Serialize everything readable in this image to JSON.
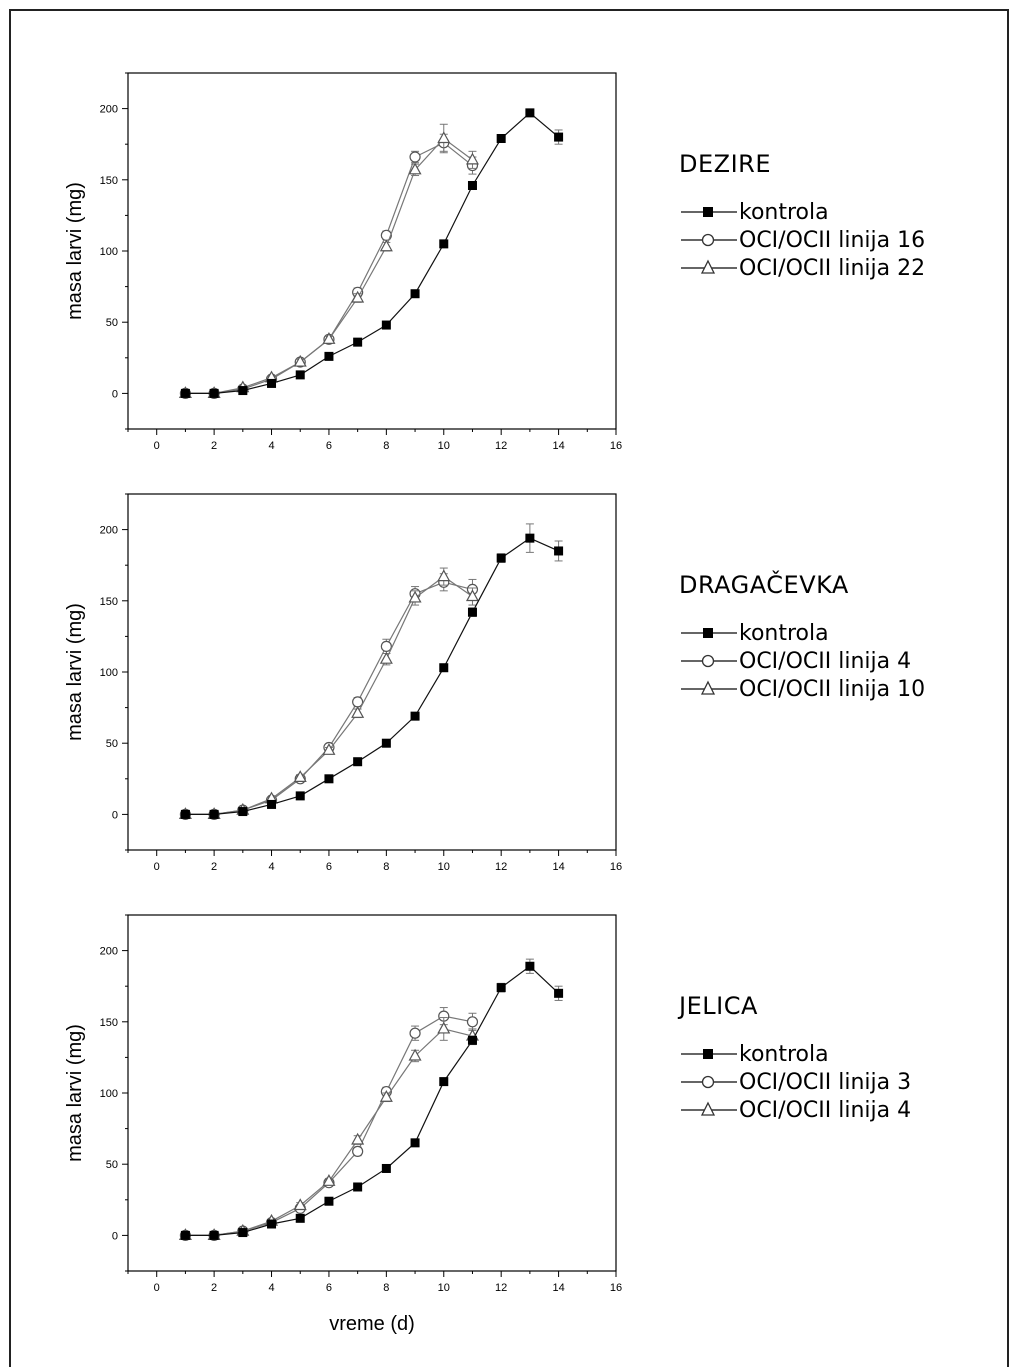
{
  "figure": {
    "xlabel": "vreme (d)",
    "ylabel": "masa larvi (mg)"
  },
  "chart_data": [
    {
      "type": "line",
      "title": "DEZIRE",
      "x_ticks": [
        "0",
        "2",
        "4",
        "6",
        "8",
        "10",
        "12",
        "14",
        "16"
      ],
      "y_ticks": [
        "0",
        "50",
        "100",
        "150",
        "200"
      ],
      "xlim": [
        -1,
        16
      ],
      "ylim": [
        -25,
        225
      ],
      "ylabel": "masa larvi (mg)",
      "xlabel": "",
      "series": [
        {
          "name": "kontrola",
          "marker": "square-filled",
          "x": [
            1,
            2,
            3,
            4,
            5,
            6,
            7,
            8,
            9,
            10,
            11,
            12,
            13,
            14
          ],
          "y": [
            0,
            0,
            2,
            7,
            13,
            26,
            36,
            48,
            70,
            105,
            146,
            179,
            197,
            180
          ],
          "err": [
            0,
            0,
            1,
            1,
            1,
            1,
            1,
            1,
            2,
            2,
            2,
            2,
            2,
            5
          ]
        },
        {
          "name": "OCI/OCII linija 16",
          "marker": "circle-open",
          "x": [
            1,
            2,
            3,
            4,
            5,
            6,
            7,
            8,
            9,
            10,
            11
          ],
          "y": [
            0,
            0,
            3,
            10,
            22,
            38,
            71,
            111,
            166,
            176,
            160
          ],
          "err": [
            0,
            0,
            1,
            1,
            2,
            2,
            3,
            3,
            4,
            6,
            6
          ]
        },
        {
          "name": "OCI/OCII linija 22",
          "marker": "triangle-open",
          "x": [
            1,
            2,
            3,
            4,
            5,
            6,
            7,
            8,
            9,
            10,
            11
          ],
          "y": [
            0,
            0,
            4,
            11,
            22,
            38,
            67,
            103,
            157,
            179,
            164
          ],
          "err": [
            0,
            0,
            1,
            1,
            2,
            2,
            3,
            3,
            4,
            10,
            6
          ]
        }
      ]
    },
    {
      "type": "line",
      "title": "DRAGAČEVKA",
      "x_ticks": [
        "0",
        "2",
        "4",
        "6",
        "8",
        "10",
        "12",
        "14",
        "16"
      ],
      "y_ticks": [
        "0",
        "50",
        "100",
        "150",
        "200"
      ],
      "xlim": [
        -1,
        16
      ],
      "ylim": [
        -25,
        225
      ],
      "ylabel": "masa larvi (mg)",
      "xlabel": "",
      "series": [
        {
          "name": "kontrola",
          "marker": "square-filled",
          "x": [
            1,
            2,
            3,
            4,
            5,
            6,
            7,
            8,
            9,
            10,
            11,
            12,
            13,
            14
          ],
          "y": [
            0,
            0,
            2,
            7,
            13,
            25,
            37,
            50,
            69,
            103,
            142,
            180,
            194,
            185
          ],
          "err": [
            0,
            0,
            1,
            1,
            1,
            1,
            1,
            1,
            2,
            2,
            3,
            3,
            10,
            7
          ]
        },
        {
          "name": "OCI/OCII linija 4",
          "marker": "circle-open",
          "x": [
            1,
            2,
            3,
            4,
            5,
            6,
            7,
            8,
            9,
            10,
            11
          ],
          "y": [
            0,
            0,
            3,
            10,
            25,
            47,
            79,
            118,
            155,
            163,
            158
          ],
          "err": [
            0,
            0,
            1,
            1,
            2,
            2,
            3,
            5,
            5,
            6,
            7
          ]
        },
        {
          "name": "OCI/OCII linija 10",
          "marker": "triangle-open",
          "x": [
            1,
            2,
            3,
            4,
            5,
            6,
            7,
            8,
            9,
            10,
            11
          ],
          "y": [
            0,
            0,
            3,
            11,
            26,
            45,
            71,
            109,
            152,
            167,
            153
          ],
          "err": [
            0,
            0,
            1,
            1,
            2,
            2,
            3,
            4,
            5,
            6,
            6
          ]
        }
      ]
    },
    {
      "type": "line",
      "title": "JELICA",
      "x_ticks": [
        "0",
        "2",
        "4",
        "6",
        "8",
        "10",
        "12",
        "14",
        "16"
      ],
      "y_ticks": [
        "0",
        "50",
        "100",
        "150",
        "200"
      ],
      "xlim": [
        -1,
        16
      ],
      "ylim": [
        -25,
        225
      ],
      "ylabel": "masa larvi (mg)",
      "xlabel": "vreme (d)",
      "series": [
        {
          "name": "kontrola",
          "marker": "square-filled",
          "x": [
            1,
            2,
            3,
            4,
            5,
            6,
            7,
            8,
            9,
            10,
            11,
            12,
            13,
            14
          ],
          "y": [
            0,
            0,
            2,
            8,
            12,
            24,
            34,
            47,
            65,
            108,
            137,
            174,
            189,
            170
          ],
          "err": [
            0,
            0,
            1,
            1,
            1,
            1,
            1,
            1,
            2,
            2,
            3,
            3,
            5,
            5
          ]
        },
        {
          "name": "OCI/OCII linija 3",
          "marker": "circle-open",
          "x": [
            1,
            2,
            3,
            4,
            5,
            6,
            7,
            8,
            9,
            10,
            11
          ],
          "y": [
            0,
            0,
            3,
            9,
            19,
            37,
            59,
            101,
            142,
            154,
            150
          ],
          "err": [
            0,
            0,
            1,
            1,
            2,
            2,
            3,
            3,
            5,
            6,
            6
          ]
        },
        {
          "name": "OCI/OCII linija 4",
          "marker": "triangle-open",
          "x": [
            1,
            2,
            3,
            4,
            5,
            6,
            7,
            8,
            9,
            10,
            11
          ],
          "y": [
            0,
            0,
            3,
            10,
            21,
            38,
            67,
            97,
            126,
            145,
            140
          ],
          "err": [
            0,
            0,
            1,
            1,
            2,
            2,
            3,
            3,
            4,
            8,
            5
          ]
        }
      ]
    }
  ]
}
